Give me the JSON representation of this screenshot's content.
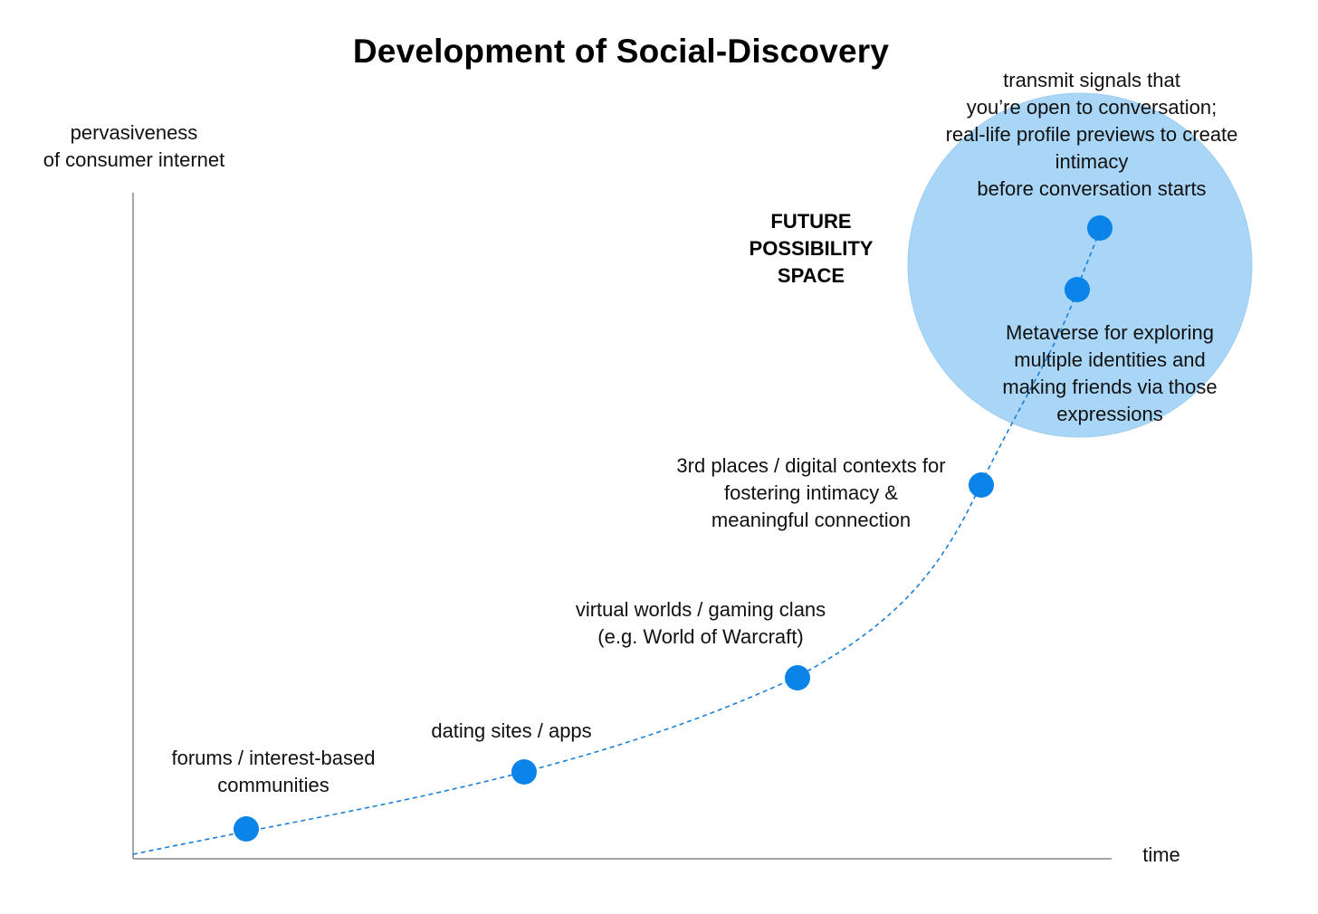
{
  "title": "Development of Social-Discovery",
  "y_axis_label": "pervasiveness\nof consumer internet",
  "x_axis_label": "time",
  "future_space_label": "FUTURE\nPOSSIBILITY\nSPACE",
  "milestones": [
    {
      "label": "forums / interest-based\ncommunities"
    },
    {
      "label": "dating sites / apps"
    },
    {
      "label": "virtual worlds / gaming clans\n(e.g. World of Warcraft)"
    },
    {
      "label": "3rd places / digital contexts for\nfostering intimacy &\nmeaningful connection"
    },
    {
      "label": "Metaverse for exploring\nmultiple identities and\nmaking friends via those\nexpressions"
    },
    {
      "label": "transmit signals that\nyou’re open to conversation;\nreal-life profile previews to create\nintimacy\nbefore conversation starts"
    }
  ],
  "colors": {
    "dot": "#0a84e8",
    "curve": "#1a7fd9",
    "future_circle": "#a9d6f7",
    "axis": "#888888"
  }
}
